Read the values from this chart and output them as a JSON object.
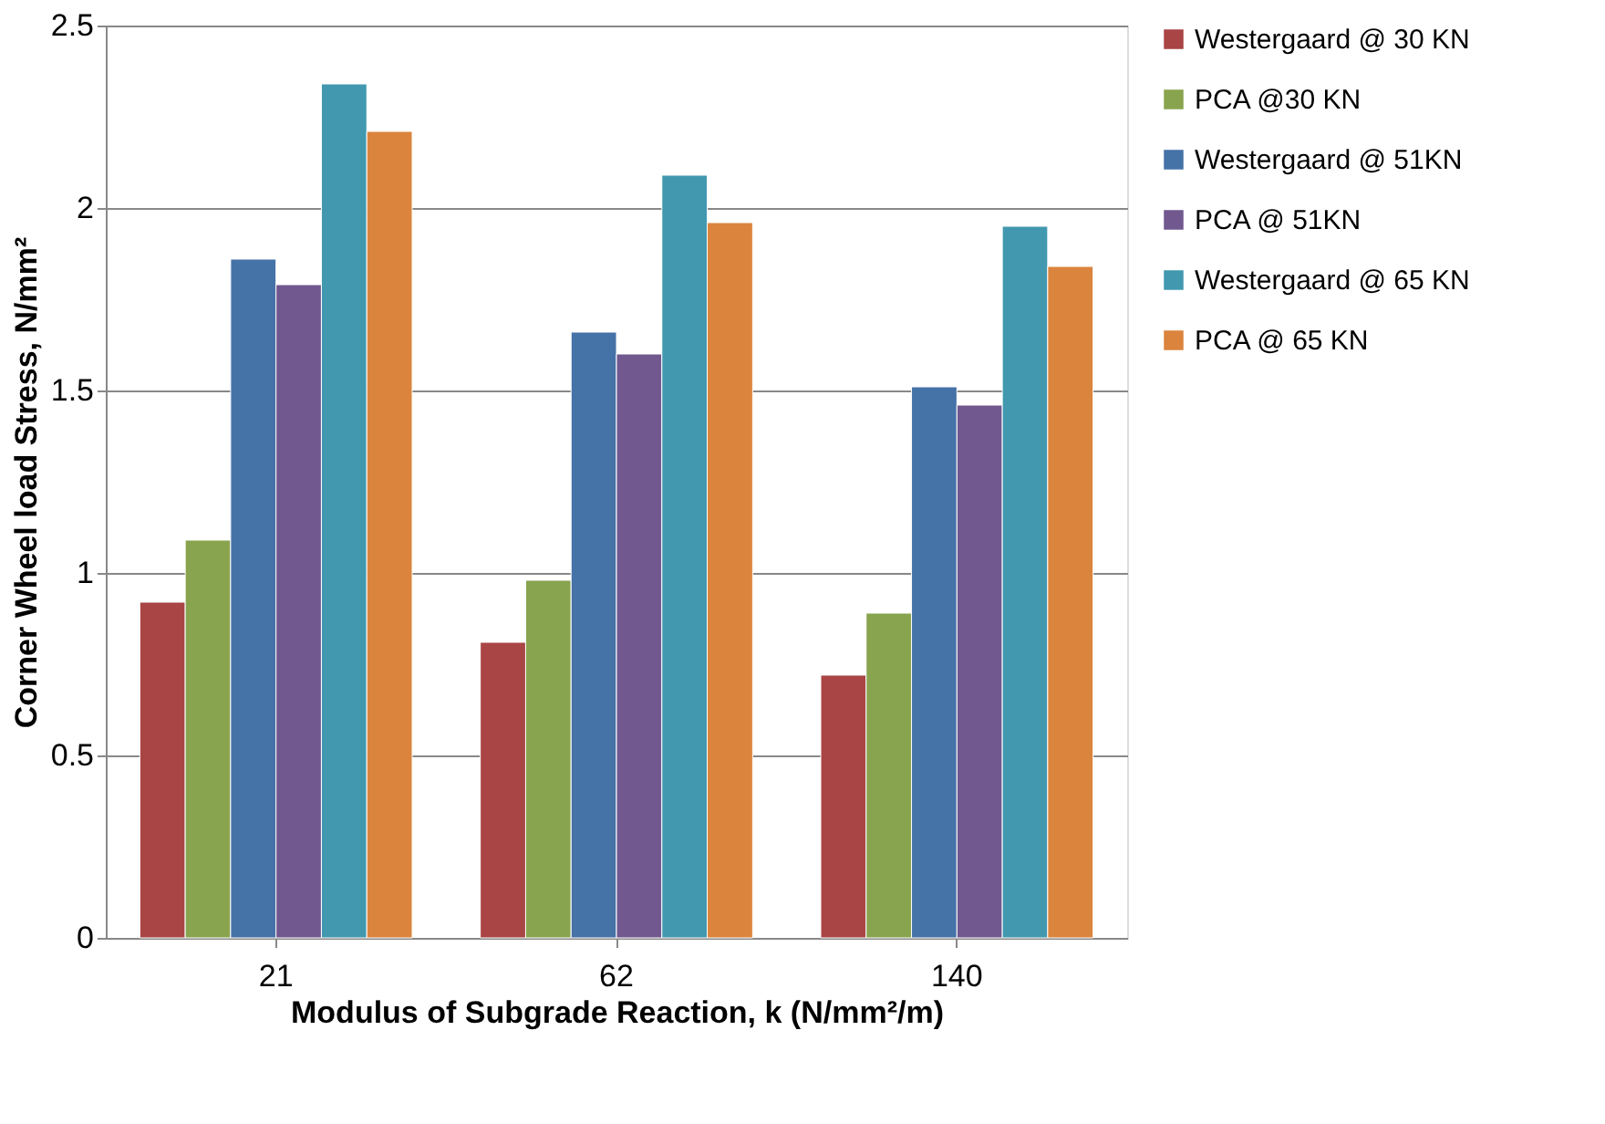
{
  "chart_data": {
    "type": "bar",
    "xlabel": "Modulus of Subgrade Reaction, k (N/mm²/m)",
    "ylabel": "Corner Wheel load Stress, N/mm²",
    "categories": [
      "21",
      "62",
      "140"
    ],
    "series": [
      {
        "name": "Westergaard @ 30 KN",
        "color": "#a94544",
        "values": [
          0.92,
          0.81,
          0.72
        ]
      },
      {
        "name": "PCA @30 KN",
        "color": "#89a44e",
        "values": [
          1.09,
          0.98,
          0.89
        ]
      },
      {
        "name": "Westergaard @ 51KN",
        "color": "#4572a7",
        "values": [
          1.86,
          1.66,
          1.51
        ]
      },
      {
        "name": "PCA @ 51KN",
        "color": "#71588f",
        "values": [
          1.79,
          1.6,
          1.46
        ]
      },
      {
        "name": "Westergaard @ 65 KN",
        "color": "#4198af",
        "values": [
          2.34,
          2.09,
          1.95
        ]
      },
      {
        "name": "PCA @ 65 KN",
        "color": "#db843d",
        "values": [
          2.21,
          1.96,
          1.84
        ]
      }
    ],
    "ylim": [
      0,
      2.5
    ],
    "yticks": [
      0,
      0.5,
      1,
      1.5,
      2,
      2.5
    ],
    "grid": "y",
    "legend": "right"
  }
}
